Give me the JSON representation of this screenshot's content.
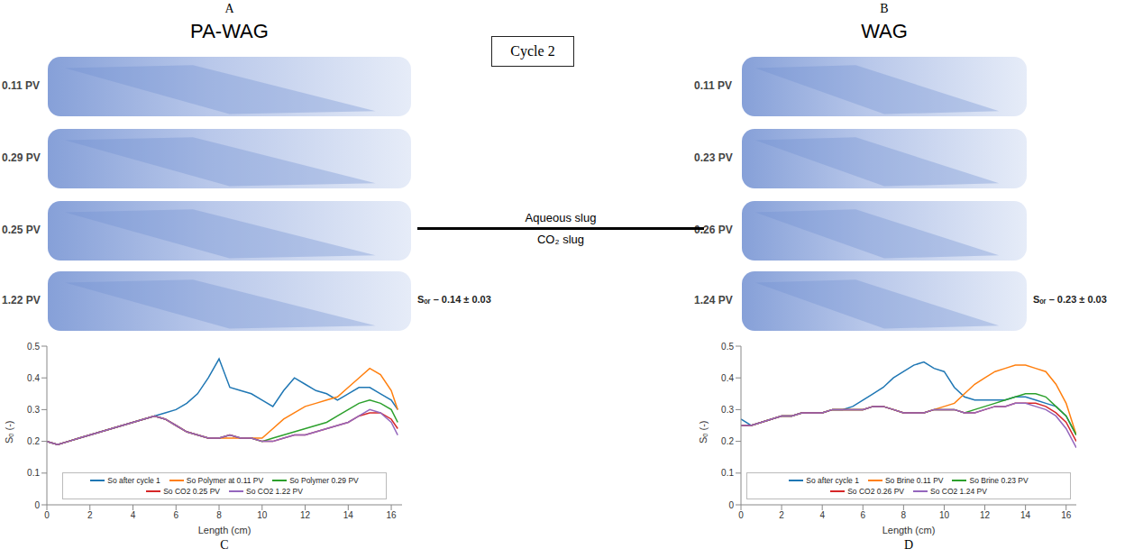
{
  "center_label": "Cycle 2",
  "divider": {
    "top": "Aqueous slug",
    "bottom": "CO₂ slug"
  },
  "image_panels": [
    {
      "letter": "A",
      "title": "PA-WAG",
      "rows": [
        "0.11 PV",
        "0.29 PV",
        "0.25 PV",
        "1.22 PV"
      ],
      "residual": "Sₒᵣ – 0.14 ± 0.03"
    },
    {
      "letter": "B",
      "title": "WAG",
      "rows": [
        "0.11 PV",
        "0.23 PV",
        "0.26 PV",
        "1.24 PV"
      ],
      "residual": "Sₒᵣ – 0.23 ± 0.03"
    }
  ],
  "chart_data": [
    {
      "type": "line",
      "letter": "C",
      "x_label": "Length (cm)",
      "y_label": "Sₒ (-)",
      "xlim": [
        0,
        16.5
      ],
      "xticks": [
        0,
        2,
        4,
        6,
        8,
        10,
        12,
        14,
        16
      ],
      "ylim": [
        0,
        0.5
      ],
      "yticks": [
        0,
        0.1,
        0.2,
        0.3,
        0.4,
        0.5
      ],
      "grid": false,
      "legend": "lower center",
      "x": [
        0,
        0.5,
        1,
        1.5,
        2,
        2.5,
        3,
        3.5,
        4,
        4.5,
        5,
        5.5,
        6,
        6.5,
        7,
        7.5,
        8,
        8.5,
        9,
        9.5,
        10,
        10.5,
        11,
        11.5,
        12,
        12.5,
        13,
        13.5,
        14,
        14.5,
        15,
        15.5,
        16,
        16.3
      ],
      "series": [
        {
          "name": "So after cycle 1",
          "color": "#1f77b4",
          "values": [
            0.2,
            0.19,
            0.2,
            0.21,
            0.22,
            0.23,
            0.24,
            0.25,
            0.26,
            0.27,
            0.28,
            0.29,
            0.3,
            0.32,
            0.35,
            0.4,
            0.46,
            0.37,
            0.36,
            0.35,
            0.33,
            0.31,
            0.36,
            0.4,
            0.38,
            0.36,
            0.35,
            0.33,
            0.35,
            0.37,
            0.37,
            0.35,
            0.33,
            0.3
          ]
        },
        {
          "name": "So Polymer at 0.11 PV",
          "color": "#ff7f0e",
          "values": [
            0.2,
            0.19,
            0.2,
            0.21,
            0.22,
            0.23,
            0.24,
            0.25,
            0.26,
            0.27,
            0.28,
            0.27,
            0.25,
            0.23,
            0.22,
            0.21,
            0.21,
            0.21,
            0.21,
            0.21,
            0.21,
            0.24,
            0.27,
            0.29,
            0.31,
            0.32,
            0.33,
            0.34,
            0.37,
            0.4,
            0.43,
            0.41,
            0.36,
            0.3
          ]
        },
        {
          "name": "So Polymer 0.29 PV",
          "color": "#2ca02c",
          "values": [
            0.2,
            0.19,
            0.2,
            0.21,
            0.22,
            0.23,
            0.24,
            0.25,
            0.26,
            0.27,
            0.28,
            0.27,
            0.25,
            0.23,
            0.22,
            0.21,
            0.21,
            0.22,
            0.21,
            0.21,
            0.2,
            0.21,
            0.22,
            0.23,
            0.24,
            0.25,
            0.26,
            0.28,
            0.3,
            0.32,
            0.33,
            0.32,
            0.3,
            0.26
          ]
        },
        {
          "name": "So CO2 0.25 PV",
          "color": "#d62728",
          "values": [
            0.2,
            0.19,
            0.2,
            0.21,
            0.22,
            0.23,
            0.24,
            0.25,
            0.26,
            0.27,
            0.28,
            0.27,
            0.25,
            0.23,
            0.22,
            0.21,
            0.21,
            0.22,
            0.21,
            0.21,
            0.2,
            0.2,
            0.21,
            0.22,
            0.22,
            0.23,
            0.24,
            0.25,
            0.26,
            0.28,
            0.29,
            0.29,
            0.27,
            0.24
          ]
        },
        {
          "name": "So CO2 1.22 PV",
          "color": "#9467bd",
          "values": [
            0.2,
            0.19,
            0.2,
            0.21,
            0.22,
            0.23,
            0.24,
            0.25,
            0.26,
            0.27,
            0.28,
            0.27,
            0.25,
            0.23,
            0.22,
            0.21,
            0.21,
            0.22,
            0.21,
            0.21,
            0.2,
            0.2,
            0.21,
            0.22,
            0.22,
            0.23,
            0.24,
            0.25,
            0.26,
            0.28,
            0.3,
            0.29,
            0.26,
            0.22
          ]
        }
      ]
    },
    {
      "type": "line",
      "letter": "D",
      "x_label": "Length (cm)",
      "y_label": "Sₒ (-)",
      "xlim": [
        0,
        16.5
      ],
      "xticks": [
        0,
        2,
        4,
        6,
        8,
        10,
        12,
        14,
        16
      ],
      "ylim": [
        0,
        0.5
      ],
      "yticks": [
        0,
        0.1,
        0.2,
        0.3,
        0.4,
        0.5
      ],
      "grid": false,
      "legend": "lower center",
      "x": [
        0,
        0.5,
        1,
        1.5,
        2,
        2.5,
        3,
        3.5,
        4,
        4.5,
        5,
        5.5,
        6,
        6.5,
        7,
        7.5,
        8,
        8.5,
        9,
        9.5,
        10,
        10.5,
        11,
        11.5,
        12,
        12.5,
        13,
        13.5,
        14,
        14.5,
        15,
        15.5,
        16,
        16.5
      ],
      "series": [
        {
          "name": "So after cycle 1",
          "color": "#1f77b4",
          "values": [
            0.27,
            0.25,
            0.26,
            0.27,
            0.28,
            0.28,
            0.29,
            0.29,
            0.29,
            0.3,
            0.3,
            0.31,
            0.33,
            0.35,
            0.37,
            0.4,
            0.42,
            0.44,
            0.45,
            0.43,
            0.42,
            0.37,
            0.34,
            0.33,
            0.33,
            0.33,
            0.33,
            0.34,
            0.34,
            0.33,
            0.32,
            0.31,
            0.28,
            0.22
          ]
        },
        {
          "name": "So Brine 0.11 PV",
          "color": "#ff7f0e",
          "values": [
            0.25,
            0.25,
            0.26,
            0.27,
            0.28,
            0.28,
            0.29,
            0.29,
            0.29,
            0.3,
            0.3,
            0.3,
            0.3,
            0.31,
            0.31,
            0.3,
            0.29,
            0.29,
            0.29,
            0.3,
            0.31,
            0.32,
            0.35,
            0.38,
            0.4,
            0.42,
            0.43,
            0.44,
            0.44,
            0.43,
            0.42,
            0.38,
            0.32,
            0.22
          ]
        },
        {
          "name": "So Brine 0.23 PV",
          "color": "#2ca02c",
          "values": [
            0.25,
            0.25,
            0.26,
            0.27,
            0.28,
            0.28,
            0.29,
            0.29,
            0.29,
            0.3,
            0.3,
            0.3,
            0.3,
            0.31,
            0.31,
            0.3,
            0.29,
            0.29,
            0.29,
            0.3,
            0.3,
            0.3,
            0.29,
            0.3,
            0.31,
            0.32,
            0.33,
            0.34,
            0.35,
            0.35,
            0.34,
            0.31,
            0.28,
            0.22
          ]
        },
        {
          "name": "So CO2 0.26 PV",
          "color": "#d62728",
          "values": [
            0.25,
            0.25,
            0.26,
            0.27,
            0.28,
            0.28,
            0.29,
            0.29,
            0.29,
            0.3,
            0.3,
            0.3,
            0.3,
            0.31,
            0.31,
            0.3,
            0.29,
            0.29,
            0.29,
            0.3,
            0.3,
            0.3,
            0.29,
            0.29,
            0.3,
            0.31,
            0.31,
            0.32,
            0.32,
            0.32,
            0.31,
            0.29,
            0.26,
            0.2
          ]
        },
        {
          "name": "So CO2 1.24 PV",
          "color": "#9467bd",
          "values": [
            0.25,
            0.25,
            0.26,
            0.27,
            0.28,
            0.28,
            0.29,
            0.29,
            0.29,
            0.3,
            0.3,
            0.3,
            0.3,
            0.31,
            0.31,
            0.3,
            0.29,
            0.29,
            0.29,
            0.3,
            0.3,
            0.3,
            0.29,
            0.29,
            0.3,
            0.31,
            0.31,
            0.32,
            0.32,
            0.31,
            0.3,
            0.28,
            0.24,
            0.18
          ]
        }
      ]
    }
  ]
}
